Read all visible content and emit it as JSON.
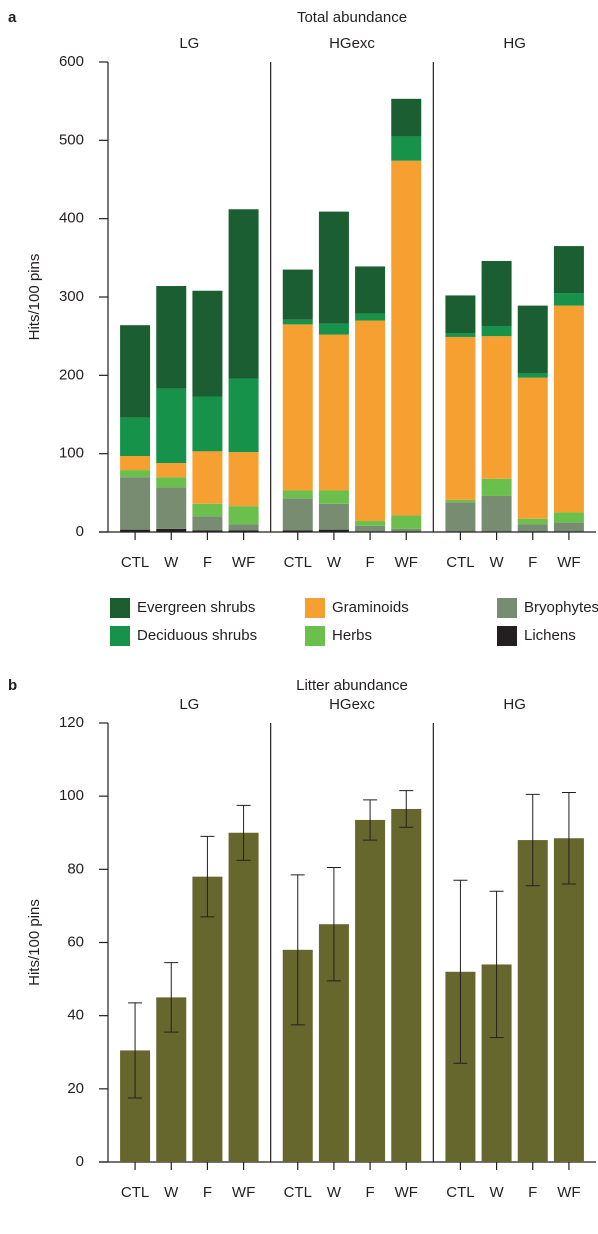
{
  "chart_data": [
    {
      "type": "stacked_bar",
      "panel_label": "a",
      "title": "Total abundance",
      "y_label": "Hits/100 pins",
      "groups": [
        "LG",
        "HGexc",
        "HG"
      ],
      "categories": [
        "CTL",
        "W",
        "F",
        "WF",
        "CTL",
        "W",
        "F",
        "WF",
        "CTL",
        "W",
        "F",
        "WF"
      ],
      "series": [
        {
          "name": "Evergreen shrubs",
          "color": "#1a5e32",
          "values": [
            118,
            131,
            135,
            216,
            64,
            143,
            60,
            48,
            48,
            83,
            86,
            60
          ]
        },
        {
          "name": "Deciduous shrubs",
          "color": "#17924b",
          "values": [
            49,
            95,
            70,
            94,
            6,
            14,
            9,
            31,
            5,
            13,
            6,
            16
          ]
        },
        {
          "name": "Graminoids",
          "color": "#f6a032",
          "values": [
            18,
            18,
            67,
            69,
            212,
            199,
            256,
            453,
            208,
            182,
            180,
            264
          ]
        },
        {
          "name": "Herbs",
          "color": "#6bbf4c",
          "values": [
            9,
            13,
            16,
            23,
            10,
            17,
            6,
            17,
            3,
            22,
            7,
            13
          ]
        },
        {
          "name": "Bryophytes",
          "color": "#778c71",
          "values": [
            67,
            53,
            18,
            8,
            41,
            33,
            7,
            3,
            37,
            45,
            9,
            11
          ]
        },
        {
          "name": "Lichens",
          "color": "#231f20",
          "values": [
            3,
            4,
            2,
            2,
            2,
            3,
            1,
            1,
            1,
            1,
            1,
            1
          ]
        }
      ],
      "ylim": [
        0,
        600
      ],
      "yticks": [
        0,
        100,
        200,
        300,
        400,
        500,
        600
      ]
    },
    {
      "type": "bar",
      "panel_label": "b",
      "title": "Litter abundance",
      "y_label": "Hits/100 pins",
      "groups": [
        "LG",
        "HGexc",
        "HG"
      ],
      "categories": [
        "CTL",
        "W",
        "F",
        "WF",
        "CTL",
        "W",
        "F",
        "WF",
        "CTL",
        "W",
        "F",
        "WF"
      ],
      "values": [
        30.5,
        45,
        78,
        90,
        58,
        65,
        93.5,
        96.5,
        52,
        54,
        88,
        88.5
      ],
      "errors": [
        13,
        9.5,
        11,
        7.5,
        20.5,
        15.5,
        5.5,
        5,
        25,
        20,
        12.5,
        12.5
      ],
      "color": "#66672d",
      "ylim": [
        0,
        120
      ],
      "yticks": [
        0,
        20,
        40,
        60,
        80,
        100,
        120
      ]
    }
  ]
}
